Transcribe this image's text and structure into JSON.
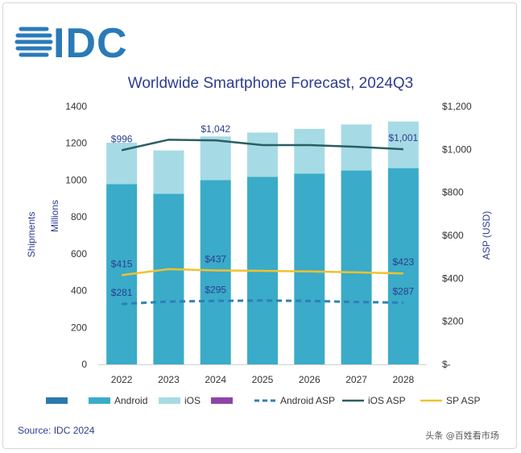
{
  "logo": {
    "text": "IDC"
  },
  "source": "Source: IDC 2024",
  "watermark": "头条 @百姓看市场",
  "chart_data": {
    "type": "bar",
    "title": "Worldwide Smartphone Forecast, 2024Q3",
    "categories": [
      "2022",
      "2023",
      "2024",
      "2025",
      "2026",
      "2027",
      "2028"
    ],
    "ylabel_left": [
      "Shipments",
      "Millions"
    ],
    "ylabel_right": "ASP (USD)",
    "ylim_left": [
      0,
      1400
    ],
    "yticks_left": [
      "0",
      "200",
      "400",
      "600",
      "800",
      "1000",
      "1200",
      "1400"
    ],
    "ylim_right": [
      0,
      1200
    ],
    "yticks_right": [
      "$-",
      "$200",
      "$400",
      "$600",
      "$800",
      "$1,000",
      "$1,200"
    ],
    "series": [
      {
        "name": "Android",
        "kind": "bar",
        "stack": "s",
        "color": "#3aabc8",
        "values": [
          978,
          926,
          1000,
          1018,
          1035,
          1052,
          1065
        ]
      },
      {
        "name": "iOS",
        "kind": "bar",
        "stack": "s",
        "color": "#a6dbe5",
        "values": [
          225,
          235,
          237,
          240,
          243,
          250,
          253
        ]
      },
      {
        "name": "Android ASP",
        "kind": "line",
        "axis": "right",
        "style": "dashed",
        "color": "#2e7fb8",
        "values": [
          281,
          292,
          295,
          297,
          295,
          290,
          287
        ]
      },
      {
        "name": "iOS ASP",
        "kind": "line",
        "axis": "right",
        "style": "solid",
        "color": "#2a5e63",
        "values": [
          996,
          1045,
          1042,
          1020,
          1020,
          1012,
          1001
        ]
      },
      {
        "name": "SP ASP",
        "kind": "line",
        "axis": "right",
        "style": "solid",
        "color": "#f2c12e",
        "values": [
          415,
          443,
          437,
          435,
          432,
          428,
          423
        ]
      }
    ],
    "data_labels": [
      {
        "series": "iOS ASP",
        "index": 0,
        "text": "$996"
      },
      {
        "series": "iOS ASP",
        "index": 2,
        "text": "$1,042"
      },
      {
        "series": "iOS ASP",
        "index": 6,
        "text": "$1,001"
      },
      {
        "series": "SP ASP",
        "index": 0,
        "text": "$415"
      },
      {
        "series": "SP ASP",
        "index": 2,
        "text": "$437"
      },
      {
        "series": "SP ASP",
        "index": 6,
        "text": "$423"
      },
      {
        "series": "Android ASP",
        "index": 0,
        "text": "$281"
      },
      {
        "series": "Android ASP",
        "index": 2,
        "text": "$295"
      },
      {
        "series": "Android ASP",
        "index": 6,
        "text": "$287"
      }
    ],
    "legend": [
      {
        "label": "",
        "type": "box",
        "color": "#2b78ad"
      },
      {
        "label": "Android",
        "type": "box",
        "color": "#3aabc8"
      },
      {
        "label": "iOS",
        "type": "box",
        "color": "#a6dbe5"
      },
      {
        "label": "",
        "type": "box",
        "color": "#8e44a8"
      },
      {
        "label": "Android ASP",
        "type": "dash",
        "color": "#2e7fb8"
      },
      {
        "label": "iOS ASP",
        "type": "line",
        "color": "#2a5e63"
      },
      {
        "label": "SP ASP",
        "type": "line",
        "color": "#f2c12e"
      }
    ]
  }
}
